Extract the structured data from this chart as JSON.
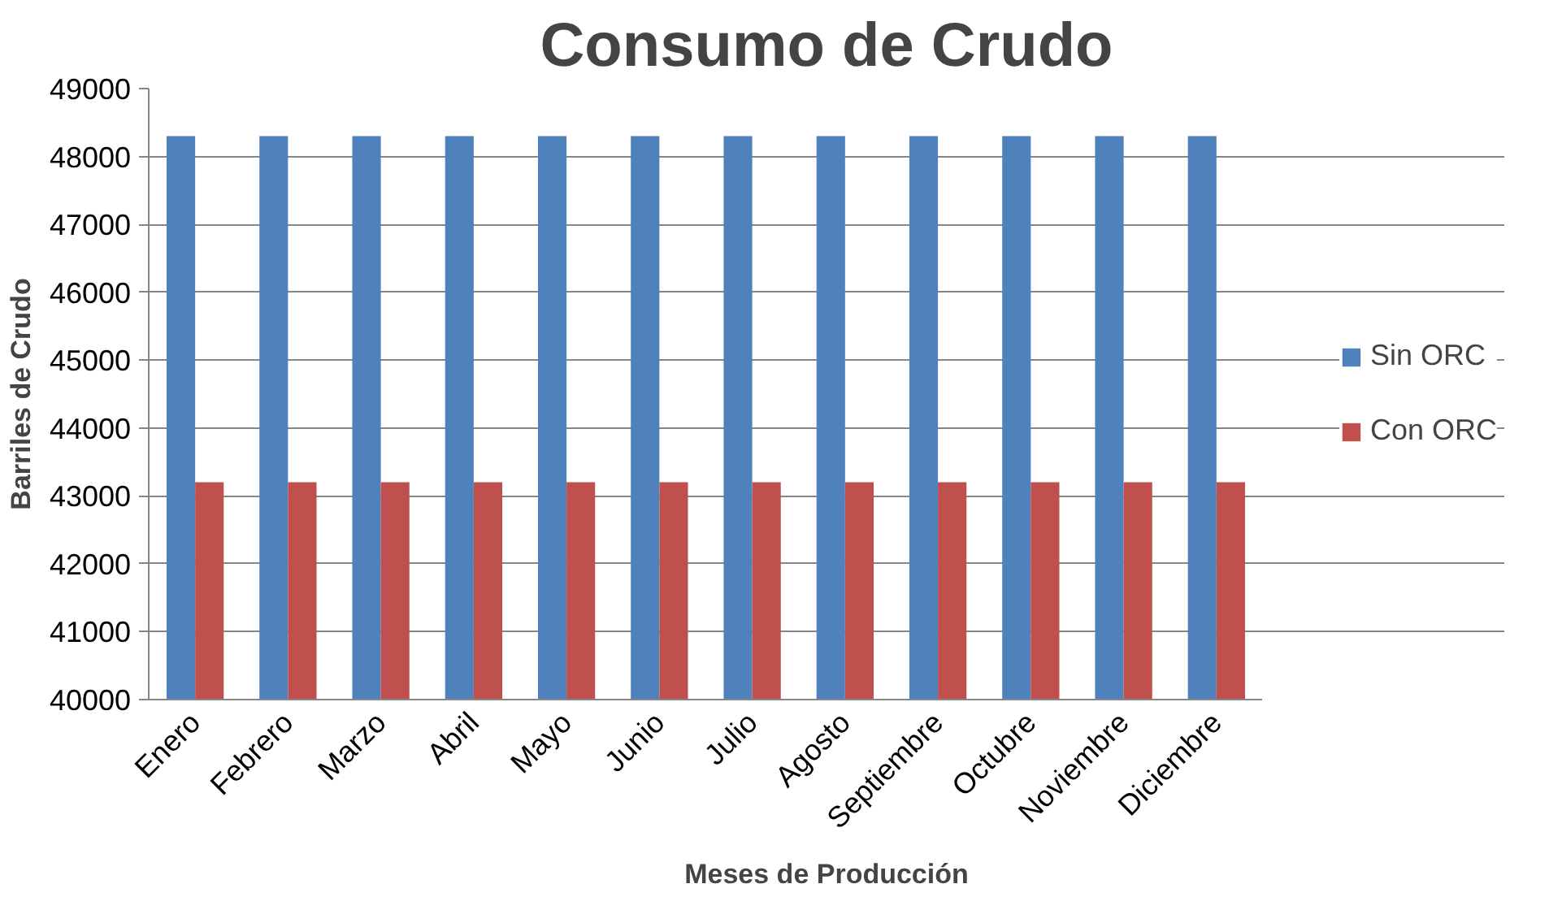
{
  "chart_data": {
    "type": "bar",
    "title": "Consumo de Crudo",
    "xlabel": "Meses de Producción",
    "ylabel": "Barriles de Crudo",
    "categories": [
      "Enero",
      "Febrero",
      "Marzo",
      "Abril",
      "Mayo",
      "Junio",
      "Julio",
      "Agosto",
      "Septiembre",
      "Octubre",
      "Noviembre",
      "Diciembre"
    ],
    "series": [
      {
        "name": "Sin ORC",
        "color": "#4f81bd",
        "values": [
          48300,
          48300,
          48300,
          48300,
          48300,
          48300,
          48300,
          48300,
          48300,
          48300,
          48300,
          48300
        ]
      },
      {
        "name": "Con ORC",
        "color": "#c0504d",
        "values": [
          43200,
          43200,
          43200,
          43200,
          43200,
          43200,
          43200,
          43200,
          43200,
          43200,
          43200,
          43200
        ]
      }
    ],
    "ylim": [
      40000,
      49000
    ],
    "yticks": [
      40000,
      41000,
      42000,
      43000,
      44000,
      45000,
      46000,
      47000,
      48000,
      49000
    ],
    "grid": "y",
    "legend": "right"
  }
}
